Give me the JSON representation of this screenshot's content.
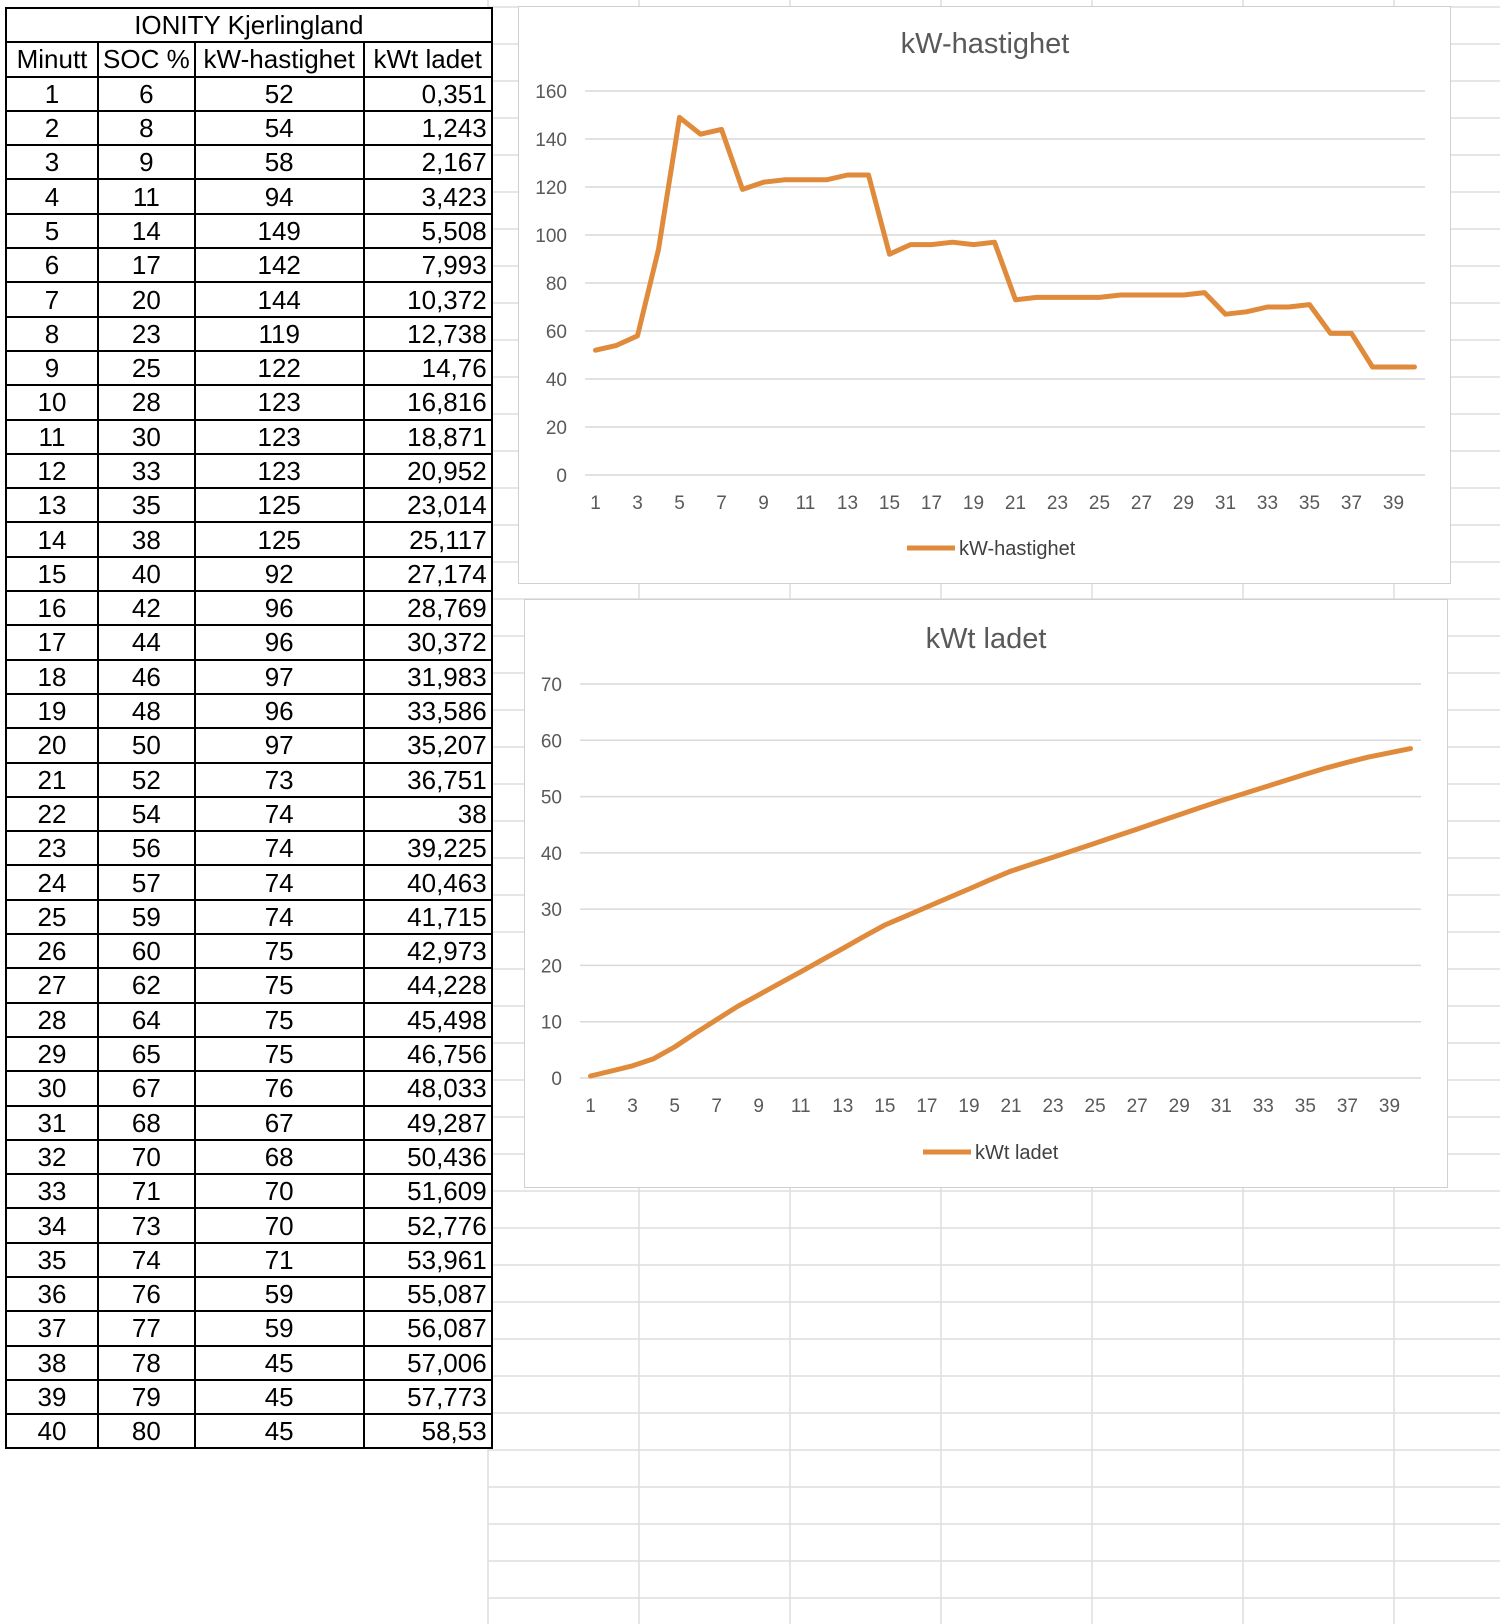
{
  "colors": {
    "series": "#E08A3C",
    "grid": "#d9d9d9",
    "sheet_grid": "#dedede"
  },
  "table": {
    "title": "IONITY Kjerlingland",
    "headers": [
      "Minutt",
      "SOC %",
      "kW-hastighet",
      "kWt ladet"
    ],
    "rows": [
      [
        "1",
        "6",
        "52",
        "0,351"
      ],
      [
        "2",
        "8",
        "54",
        "1,243"
      ],
      [
        "3",
        "9",
        "58",
        "2,167"
      ],
      [
        "4",
        "11",
        "94",
        "3,423"
      ],
      [
        "5",
        "14",
        "149",
        "5,508"
      ],
      [
        "6",
        "17",
        "142",
        "7,993"
      ],
      [
        "7",
        "20",
        "144",
        "10,372"
      ],
      [
        "8",
        "23",
        "119",
        "12,738"
      ],
      [
        "9",
        "25",
        "122",
        "14,76"
      ],
      [
        "10",
        "28",
        "123",
        "16,816"
      ],
      [
        "11",
        "30",
        "123",
        "18,871"
      ],
      [
        "12",
        "33",
        "123",
        "20,952"
      ],
      [
        "13",
        "35",
        "125",
        "23,014"
      ],
      [
        "14",
        "38",
        "125",
        "25,117"
      ],
      [
        "15",
        "40",
        "92",
        "27,174"
      ],
      [
        "16",
        "42",
        "96",
        "28,769"
      ],
      [
        "17",
        "44",
        "96",
        "30,372"
      ],
      [
        "18",
        "46",
        "97",
        "31,983"
      ],
      [
        "19",
        "48",
        "96",
        "33,586"
      ],
      [
        "20",
        "50",
        "97",
        "35,207"
      ],
      [
        "21",
        "52",
        "73",
        "36,751"
      ],
      [
        "22",
        "54",
        "74",
        "38"
      ],
      [
        "23",
        "56",
        "74",
        "39,225"
      ],
      [
        "24",
        "57",
        "74",
        "40,463"
      ],
      [
        "25",
        "59",
        "74",
        "41,715"
      ],
      [
        "26",
        "60",
        "75",
        "42,973"
      ],
      [
        "27",
        "62",
        "75",
        "44,228"
      ],
      [
        "28",
        "64",
        "75",
        "45,498"
      ],
      [
        "29",
        "65",
        "75",
        "46,756"
      ],
      [
        "30",
        "67",
        "76",
        "48,033"
      ],
      [
        "31",
        "68",
        "67",
        "49,287"
      ],
      [
        "32",
        "70",
        "68",
        "50,436"
      ],
      [
        "33",
        "71",
        "70",
        "51,609"
      ],
      [
        "34",
        "73",
        "70",
        "52,776"
      ],
      [
        "35",
        "74",
        "71",
        "53,961"
      ],
      [
        "36",
        "76",
        "59",
        "55,087"
      ],
      [
        "37",
        "77",
        "59",
        "56,087"
      ],
      [
        "38",
        "78",
        "45",
        "57,006"
      ],
      [
        "39",
        "79",
        "45",
        "57,773"
      ],
      [
        "40",
        "80",
        "45",
        "58,53"
      ]
    ]
  },
  "chart_data": [
    {
      "type": "line",
      "title": "kW-hastighet",
      "xlabel": "",
      "ylabel": "",
      "x": [
        1,
        2,
        3,
        4,
        5,
        6,
        7,
        8,
        9,
        10,
        11,
        12,
        13,
        14,
        15,
        16,
        17,
        18,
        19,
        20,
        21,
        22,
        23,
        24,
        25,
        26,
        27,
        28,
        29,
        30,
        31,
        32,
        33,
        34,
        35,
        36,
        37,
        38,
        39,
        40
      ],
      "x_tick_labels": [
        "1",
        "3",
        "5",
        "7",
        "9",
        "11",
        "13",
        "15",
        "17",
        "19",
        "21",
        "23",
        "25",
        "27",
        "29",
        "31",
        "33",
        "35",
        "37",
        "39"
      ],
      "y_ticks": [
        "0",
        "20",
        "40",
        "60",
        "80",
        "100",
        "120",
        "140",
        "160"
      ],
      "ylim": [
        0,
        160
      ],
      "grid": true,
      "legend": "bottom",
      "series": [
        {
          "name": "kW-hastighet",
          "values": [
            52,
            54,
            58,
            94,
            149,
            142,
            144,
            119,
            122,
            123,
            123,
            123,
            125,
            125,
            92,
            96,
            96,
            97,
            96,
            97,
            73,
            74,
            74,
            74,
            74,
            75,
            75,
            75,
            75,
            76,
            67,
            68,
            70,
            70,
            71,
            59,
            59,
            45,
            45,
            45
          ]
        }
      ]
    },
    {
      "type": "line",
      "title": "kWt ladet",
      "xlabel": "",
      "ylabel": "",
      "x": [
        1,
        2,
        3,
        4,
        5,
        6,
        7,
        8,
        9,
        10,
        11,
        12,
        13,
        14,
        15,
        16,
        17,
        18,
        19,
        20,
        21,
        22,
        23,
        24,
        25,
        26,
        27,
        28,
        29,
        30,
        31,
        32,
        33,
        34,
        35,
        36,
        37,
        38,
        39,
        40
      ],
      "x_tick_labels": [
        "1",
        "3",
        "5",
        "7",
        "9",
        "11",
        "13",
        "15",
        "17",
        "19",
        "21",
        "23",
        "25",
        "27",
        "29",
        "31",
        "33",
        "35",
        "37",
        "39"
      ],
      "y_ticks": [
        "0",
        "10",
        "20",
        "30",
        "40",
        "50",
        "60",
        "70"
      ],
      "ylim": [
        0,
        70
      ],
      "grid": true,
      "legend": "bottom",
      "series": [
        {
          "name": "kWt ladet",
          "values": [
            0.351,
            1.243,
            2.167,
            3.423,
            5.508,
            7.993,
            10.372,
            12.738,
            14.76,
            16.816,
            18.871,
            20.952,
            23.014,
            25.117,
            27.174,
            28.769,
            30.372,
            31.983,
            33.586,
            35.207,
            36.751,
            38,
            39.225,
            40.463,
            41.715,
            42.973,
            44.228,
            45.498,
            46.756,
            48.033,
            49.287,
            50.436,
            51.609,
            52.776,
            53.961,
            55.087,
            56.087,
            57.006,
            57.773,
            58.53
          ]
        }
      ]
    }
  ]
}
